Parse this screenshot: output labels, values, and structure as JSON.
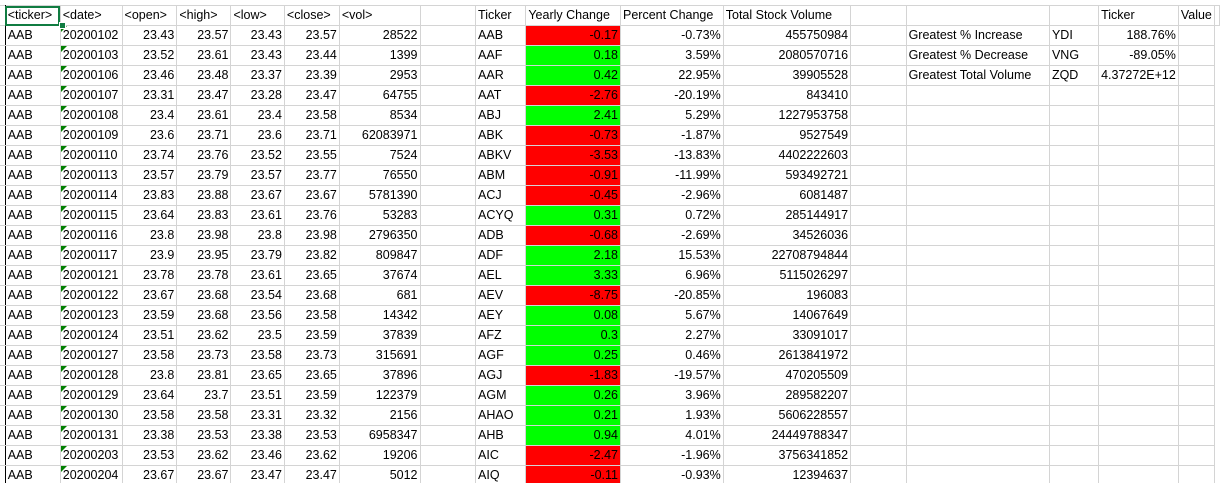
{
  "headers": {
    "ticker": "<ticker>",
    "date": "<date>",
    "open": "<open>",
    "high": "<high>",
    "low": "<low>",
    "close": "<close>",
    "vol": "<vol>",
    "sum_ticker": "Ticker",
    "yearly_change": "Yearly Change",
    "percent_change": "Percent Change",
    "total_volume": "Total Stock Volume",
    "greatest_ticker": "Ticker",
    "greatest_value": "Value"
  },
  "rows": [
    {
      "ticker": "AAB",
      "date": "20200102",
      "open": "23.43",
      "high": "23.57",
      "low": "23.43",
      "close": "23.57",
      "vol": "28522",
      "s_ticker": "AAB",
      "change": "-0.17",
      "pct": "-0.73%",
      "total": "455750984",
      "color": "red",
      "g_label": "Greatest % Increase",
      "g_ticker": "YDI",
      "g_value": "188.76%"
    },
    {
      "ticker": "AAB",
      "date": "20200103",
      "open": "23.52",
      "high": "23.61",
      "low": "23.43",
      "close": "23.44",
      "vol": "1399",
      "s_ticker": "AAF",
      "change": "0.18",
      "pct": "3.59%",
      "total": "2080570716",
      "color": "green",
      "g_label": "Greatest % Decrease",
      "g_ticker": "VNG",
      "g_value": "-89.05%"
    },
    {
      "ticker": "AAB",
      "date": "20200106",
      "open": "23.46",
      "high": "23.48",
      "low": "23.37",
      "close": "23.39",
      "vol": "2953",
      "s_ticker": "AAR",
      "change": "0.42",
      "pct": "22.95%",
      "total": "39905528",
      "color": "green",
      "g_label": "Greatest Total Volume",
      "g_ticker": "ZQD",
      "g_value": "4.37272E+12"
    },
    {
      "ticker": "AAB",
      "date": "20200107",
      "open": "23.31",
      "high": "23.47",
      "low": "23.28",
      "close": "23.47",
      "vol": "64755",
      "s_ticker": "AAT",
      "change": "-2.76",
      "pct": "-20.19%",
      "total": "843410",
      "color": "red"
    },
    {
      "ticker": "AAB",
      "date": "20200108",
      "open": "23.4",
      "high": "23.61",
      "low": "23.4",
      "close": "23.58",
      "vol": "8534",
      "s_ticker": "ABJ",
      "change": "2.41",
      "pct": "5.29%",
      "total": "1227953758",
      "color": "green"
    },
    {
      "ticker": "AAB",
      "date": "20200109",
      "open": "23.6",
      "high": "23.71",
      "low": "23.6",
      "close": "23.71",
      "vol": "62083971",
      "s_ticker": "ABK",
      "change": "-0.73",
      "pct": "-1.87%",
      "total": "9527549",
      "color": "red"
    },
    {
      "ticker": "AAB",
      "date": "20200110",
      "open": "23.74",
      "high": "23.76",
      "low": "23.52",
      "close": "23.55",
      "vol": "7524",
      "s_ticker": "ABKV",
      "change": "-3.53",
      "pct": "-13.83%",
      "total": "4402222603",
      "color": "red"
    },
    {
      "ticker": "AAB",
      "date": "20200113",
      "open": "23.57",
      "high": "23.79",
      "low": "23.57",
      "close": "23.77",
      "vol": "76550",
      "s_ticker": "ABM",
      "change": "-0.91",
      "pct": "-11.99%",
      "total": "593492721",
      "color": "red"
    },
    {
      "ticker": "AAB",
      "date": "20200114",
      "open": "23.83",
      "high": "23.88",
      "low": "23.67",
      "close": "23.67",
      "vol": "5781390",
      "s_ticker": "ACJ",
      "change": "-0.45",
      "pct": "-2.96%",
      "total": "6081487",
      "color": "red"
    },
    {
      "ticker": "AAB",
      "date": "20200115",
      "open": "23.64",
      "high": "23.83",
      "low": "23.61",
      "close": "23.76",
      "vol": "53283",
      "s_ticker": "ACYQ",
      "change": "0.31",
      "pct": "0.72%",
      "total": "285144917",
      "color": "green"
    },
    {
      "ticker": "AAB",
      "date": "20200116",
      "open": "23.8",
      "high": "23.98",
      "low": "23.8",
      "close": "23.98",
      "vol": "2796350",
      "s_ticker": "ADB",
      "change": "-0.68",
      "pct": "-2.69%",
      "total": "34526036",
      "color": "red"
    },
    {
      "ticker": "AAB",
      "date": "20200117",
      "open": "23.9",
      "high": "23.95",
      "low": "23.79",
      "close": "23.82",
      "vol": "809847",
      "s_ticker": "ADF",
      "change": "2.18",
      "pct": "15.53%",
      "total": "22708794844",
      "color": "green"
    },
    {
      "ticker": "AAB",
      "date": "20200121",
      "open": "23.78",
      "high": "23.78",
      "low": "23.61",
      "close": "23.65",
      "vol": "37674",
      "s_ticker": "AEL",
      "change": "3.33",
      "pct": "6.96%",
      "total": "5115026297",
      "color": "green"
    },
    {
      "ticker": "AAB",
      "date": "20200122",
      "open": "23.67",
      "high": "23.68",
      "low": "23.54",
      "close": "23.68",
      "vol": "681",
      "s_ticker": "AEV",
      "change": "-8.75",
      "pct": "-20.85%",
      "total": "196083",
      "color": "red"
    },
    {
      "ticker": "AAB",
      "date": "20200123",
      "open": "23.59",
      "high": "23.68",
      "low": "23.56",
      "close": "23.58",
      "vol": "14342",
      "s_ticker": "AEY",
      "change": "0.08",
      "pct": "5.67%",
      "total": "14067649",
      "color": "green"
    },
    {
      "ticker": "AAB",
      "date": "20200124",
      "open": "23.51",
      "high": "23.62",
      "low": "23.5",
      "close": "23.59",
      "vol": "37839",
      "s_ticker": "AFZ",
      "change": "0.3",
      "pct": "2.27%",
      "total": "33091017",
      "color": "green"
    },
    {
      "ticker": "AAB",
      "date": "20200127",
      "open": "23.58",
      "high": "23.73",
      "low": "23.58",
      "close": "23.73",
      "vol": "315691",
      "s_ticker": "AGF",
      "change": "0.25",
      "pct": "0.46%",
      "total": "2613841972",
      "color": "green"
    },
    {
      "ticker": "AAB",
      "date": "20200128",
      "open": "23.8",
      "high": "23.81",
      "low": "23.65",
      "close": "23.65",
      "vol": "37896",
      "s_ticker": "AGJ",
      "change": "-1.83",
      "pct": "-19.57%",
      "total": "470205509",
      "color": "red"
    },
    {
      "ticker": "AAB",
      "date": "20200129",
      "open": "23.64",
      "high": "23.7",
      "low": "23.51",
      "close": "23.59",
      "vol": "122379",
      "s_ticker": "AGM",
      "change": "0.26",
      "pct": "3.96%",
      "total": "289582207",
      "color": "green"
    },
    {
      "ticker": "AAB",
      "date": "20200130",
      "open": "23.58",
      "high": "23.58",
      "low": "23.31",
      "close": "23.32",
      "vol": "2156",
      "s_ticker": "AHAO",
      "change": "0.21",
      "pct": "1.93%",
      "total": "5606228557",
      "color": "green"
    },
    {
      "ticker": "AAB",
      "date": "20200131",
      "open": "23.38",
      "high": "23.53",
      "low": "23.38",
      "close": "23.53",
      "vol": "6958347",
      "s_ticker": "AHB",
      "change": "0.94",
      "pct": "4.01%",
      "total": "24449788347",
      "color": "green"
    },
    {
      "ticker": "AAB",
      "date": "20200203",
      "open": "23.53",
      "high": "23.62",
      "low": "23.46",
      "close": "23.62",
      "vol": "19206",
      "s_ticker": "AIC",
      "change": "-2.47",
      "pct": "-1.96%",
      "total": "3756341852",
      "color": "red"
    },
    {
      "ticker": "AAB",
      "date": "20200204",
      "open": "23.67",
      "high": "23.67",
      "low": "23.47",
      "close": "23.47",
      "vol": "5012",
      "s_ticker": "AIQ",
      "change": "-0.11",
      "pct": "-0.93%",
      "total": "12394637",
      "color": "red"
    }
  ],
  "colors": {
    "positive": "#00ff00",
    "negative": "#ff0000",
    "selection": "#107c41",
    "grid": "#d4d4d4"
  }
}
